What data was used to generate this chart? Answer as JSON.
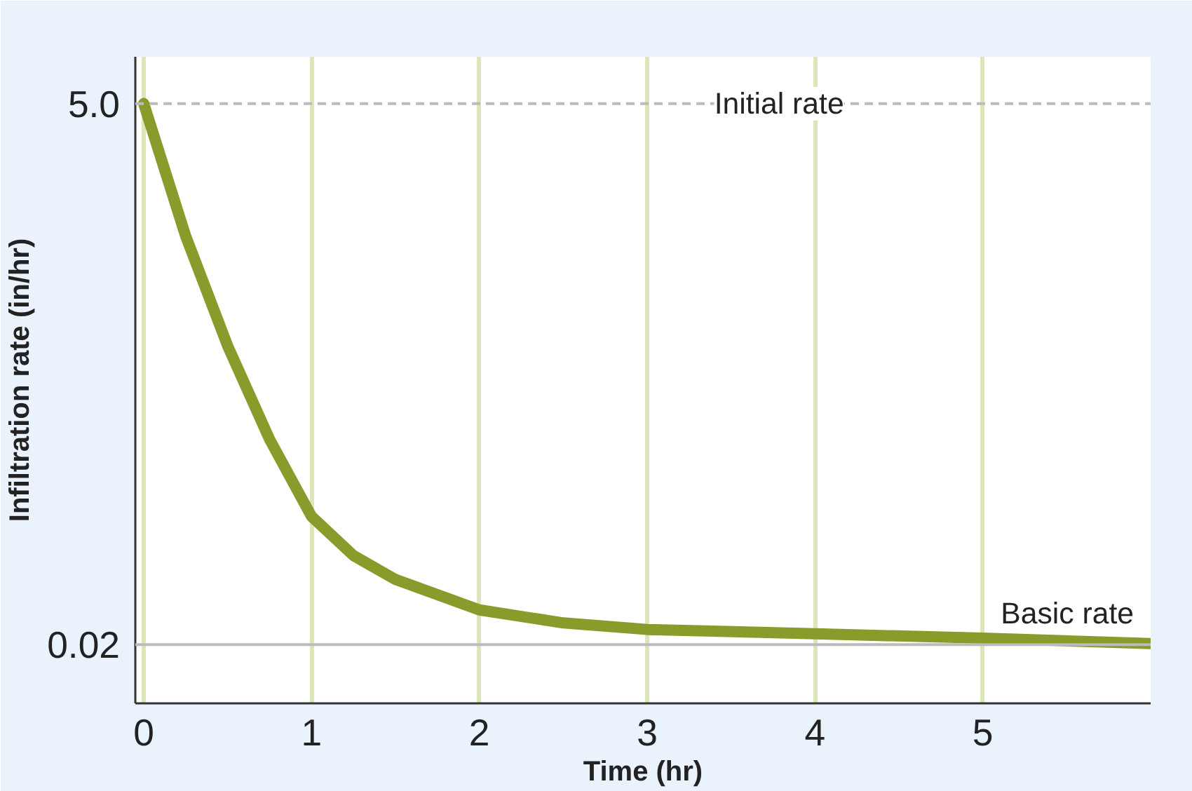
{
  "chart_data": {
    "type": "line",
    "xlabel": "Time (hr)",
    "ylabel": "Infiltration rate (in/hr)",
    "x": [
      0,
      0.25,
      0.5,
      0.75,
      1,
      1.25,
      1.5,
      2,
      2.5,
      3,
      4,
      5,
      6
    ],
    "series": [
      {
        "color": "#8a9a2b",
        "values": [
          5.0,
          3.78,
          2.77,
          1.91,
          1.2,
          0.84,
          0.62,
          0.34,
          0.22,
          0.16,
          0.12,
          0.08,
          0.03
        ]
      }
    ],
    "xlim": [
      -0.05,
      6.0
    ],
    "xticks": [
      0,
      1,
      2,
      3,
      4,
      5
    ],
    "ylim": [
      -0.52,
      5.43
    ],
    "yticks": [
      {
        "value": 5.0,
        "label": "5.0"
      },
      0.02
    ],
    "grid": "x",
    "marker": "none",
    "line_style": "solid",
    "ref_lines": [
      {
        "axis": "y",
        "value": 5.0,
        "label": "Initial rate",
        "color": "#bbbbbb",
        "line_style": "dashed"
      },
      {
        "axis": "y",
        "value": 0.02,
        "label": "Basic rate",
        "color": "#bbbbbb",
        "line_style": "solid"
      }
    ]
  }
}
